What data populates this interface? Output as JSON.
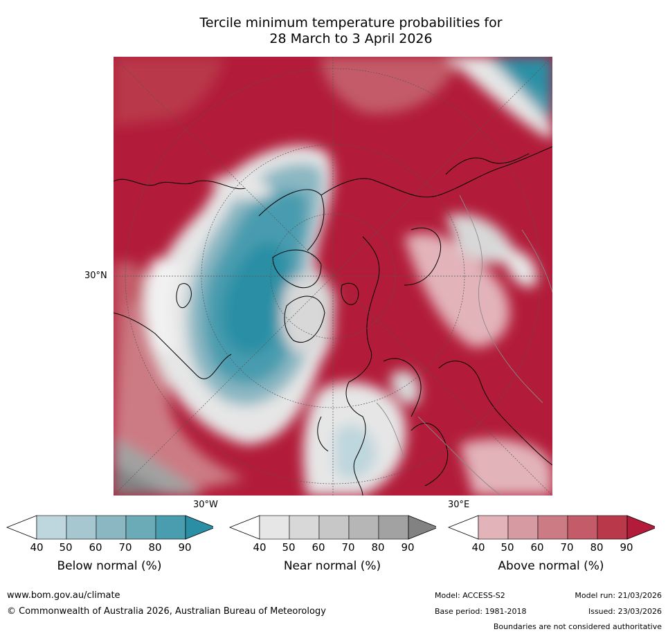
{
  "title": {
    "line1": "Tercile minimum temperature probabilities for",
    "line2": "28 March to 3 April 2026"
  },
  "map": {
    "lat_label": "30°N",
    "lon_labels": [
      "30°W",
      "30°E"
    ]
  },
  "legend": {
    "ticks": [
      "40",
      "50",
      "60",
      "70",
      "80",
      "90"
    ],
    "bars": [
      {
        "label": "Below normal (%)",
        "colors": [
          "#bed6dd",
          "#a6c7cf",
          "#8bb7c3",
          "#6babb8",
          "#4a9caf",
          "#2a8fa5"
        ]
      },
      {
        "label": "Near normal (%)",
        "colors": [
          "#e6e6e6",
          "#d8d8d8",
          "#c7c7c7",
          "#b6b6b6",
          "#a2a2a2",
          "#828282"
        ]
      },
      {
        "label": "Above normal (%)",
        "colors": [
          "#e2b3b9",
          "#d69aa2",
          "#cc7a84",
          "#c35c68",
          "#b9384a",
          "#b21c3a"
        ]
      }
    ]
  },
  "footer": {
    "url": "www.bom.gov.au/climate",
    "copyright": "© Commonwealth of Australia 2026, Australian Bureau of Meteorology",
    "model": "Model: ACCESS-S2",
    "model_run": "Model run: 21/03/2026",
    "base_period": "Base period: 1981-2018",
    "issued": "Issued: 23/03/2026",
    "disclaimer": "Boundaries are not considered authoritative"
  }
}
